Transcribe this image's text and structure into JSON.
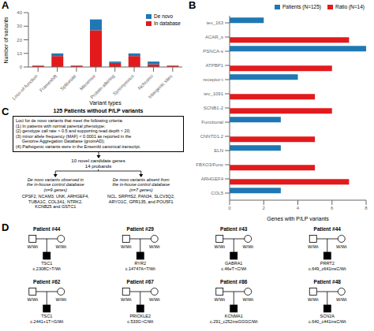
{
  "chart_data": [
    {
      "type": "bar",
      "stacked": true,
      "annotations": [
        "A"
      ],
      "categories": [
        "Loss-of-function",
        "Frameshift",
        "Splicesite",
        "Missense",
        "Protein-altering",
        "Synonymous",
        "Nchromo",
        "Intergenic sites"
      ],
      "series": [
        {
          "name": "In database",
          "color": "#e31a1c",
          "values": [
            1,
            8,
            1,
            27,
            3,
            8,
            2,
            1
          ]
        },
        {
          "name": "De novo",
          "color": "#1f78b4",
          "values": [
            0,
            2,
            0,
            8,
            1,
            2,
            2,
            0
          ]
        }
      ],
      "xlabel": "Variant types",
      "ylabel": "Number of variants",
      "ylim": [
        0,
        40
      ],
      "yticks": [
        0,
        10,
        20,
        30,
        40
      ],
      "legend": "upper right"
    },
    {
      "type": "bar",
      "orientation": "horizontal",
      "annotations": [
        "B"
      ],
      "categories": [
        "COL5",
        "ARHGEF4",
        "FBXO3/Func",
        "ELN",
        "CNNTD1.2",
        "Functional",
        "SCNB1-2",
        "tev_1091",
        "receptor-t",
        "ATPBP1",
        "PSNCA-s",
        "ACAR_s",
        "tev_163"
      ],
      "series": [
        {
          "name": "Patients (N=125)",
          "color": "#1f78b4",
          "values": [
            3,
            0,
            0,
            3,
            0,
            3,
            0,
            0,
            4,
            0,
            8,
            0,
            2
          ]
        },
        {
          "name": "Ratio (N=14)",
          "color": "#e31a1c",
          "values": [
            0,
            7,
            5,
            0,
            5,
            0,
            6,
            5,
            0,
            6,
            0,
            7,
            0
          ]
        }
      ],
      "xlabel": "Genes with P/LP variants",
      "xlim": [
        0,
        8
      ],
      "xticks": [
        0,
        2,
        4,
        6,
        8
      ],
      "legend": "upper right"
    },
    {
      "type": "flowchart",
      "annotations": [
        "C"
      ],
      "title": "125 Patients without P/LP variants",
      "criteria": "Loci for de novo variants that meet the following criteria:\n(1) In patients with normal parental phenotype;\n(2) genotype call rate > 0.5 and supporting read depth > 20;\n(3) minor allele frequency (MAF) < 0.0001 as reported in the\n     Genome Aggregation Database (gnomAD);\n(4) Pathogenic variants were in the Ensembl canonical transcript.",
      "result": "10 novel candidate genes\n14 probands",
      "branches": [
        {
          "title": "De novo variants observed in\nthe in-house control database\n(n=9 genes)",
          "genes": "CPSF2, NCAM3, UNK, ARHGEF4,\nTUBA1C, COL3A1, NTRK2,\nKCNB25 and GSTC1"
        },
        {
          "title": "De novo variants absent from\nthe in-house control database\n(n=7 genes)",
          "genes": "NCL, SRPHS2, PAN34, SLCV3Q2,\nARYO1C, GPR135, and POU5F1"
        }
      ]
    },
    {
      "type": "pedigree",
      "annotations": [
        "D"
      ],
      "families": [
        {
          "id": "Patient #44",
          "father": "W/Wt",
          "mother": "W/Wt",
          "child": "TSC1\nc.2308C>T/Wt",
          "child_filled": true
        },
        {
          "id": "Patient #29",
          "father": "W/Wt",
          "mother": "W/Wt",
          "child": "RYR2\nc.14747A>T/Wt",
          "child_filled": true
        },
        {
          "id": "Patient #43",
          "father": "W/Wt",
          "mother": "W/Wt",
          "child": "GABRA1\nc.46eT>C/Wt",
          "child_filled": true
        },
        {
          "id": "Patient #44",
          "father": "W/Wt",
          "mother": "W/Wt",
          "child": "PRRT2\nc.649_c641insC/Wt",
          "child_filled": true
        },
        {
          "id": "Patient #62",
          "father": "W/Wt",
          "mother": "W/Wt",
          "child": "TSC1\nc.2441+1T>G/Wt",
          "child_filled": true
        },
        {
          "id": "Patient #67",
          "father": "W/Wt",
          "mother": "W/Wt",
          "child": "PRICKLE2\nc.533G>C/Wt",
          "child_filled": true
        },
        {
          "id": "Patient #86",
          "father": "W/Wt",
          "mother": "W/Wt",
          "child": "KCNMA1\nc.291_c252insGGGC/Wt",
          "child_filled": true
        },
        {
          "id": "Patient #48",
          "father": "W/Wt",
          "mother": "W/Wt",
          "child": "SCN2A\nc.640_c441insC/Wt",
          "child_filled": true
        }
      ]
    }
  ]
}
